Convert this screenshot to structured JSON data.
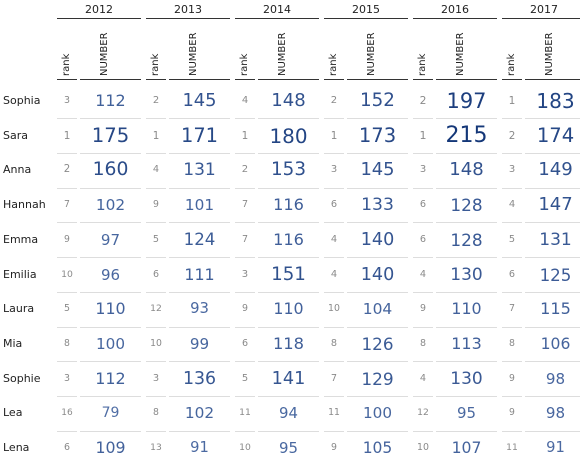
{
  "table": {
    "years": [
      "2012",
      "2013",
      "2014",
      "2015",
      "2016",
      "2017"
    ],
    "subheaders": [
      "rank",
      "NUMBER"
    ],
    "rows": [
      {
        "name": "Sophia",
        "cells": [
          [
            3,
            112
          ],
          [
            2,
            145
          ],
          [
            4,
            148
          ],
          [
            2,
            152
          ],
          [
            2,
            197
          ],
          [
            1,
            183
          ]
        ]
      },
      {
        "name": "Sara",
        "cells": [
          [
            1,
            175
          ],
          [
            1,
            171
          ],
          [
            1,
            180
          ],
          [
            1,
            173
          ],
          [
            1,
            215
          ],
          [
            2,
            174
          ]
        ]
      },
      {
        "name": "Anna",
        "cells": [
          [
            2,
            160
          ],
          [
            4,
            131
          ],
          [
            2,
            153
          ],
          [
            3,
            145
          ],
          [
            3,
            148
          ],
          [
            3,
            149
          ]
        ]
      },
      {
        "name": "Hannah",
        "cells": [
          [
            7,
            102
          ],
          [
            9,
            101
          ],
          [
            7,
            116
          ],
          [
            6,
            133
          ],
          [
            6,
            128
          ],
          [
            4,
            147
          ]
        ]
      },
      {
        "name": "Emma",
        "cells": [
          [
            9,
            97
          ],
          [
            5,
            124
          ],
          [
            7,
            116
          ],
          [
            4,
            140
          ],
          [
            6,
            128
          ],
          [
            5,
            131
          ]
        ]
      },
      {
        "name": "Emilia",
        "cells": [
          [
            10,
            96
          ],
          [
            6,
            111
          ],
          [
            3,
            151
          ],
          [
            4,
            140
          ],
          [
            4,
            130
          ],
          [
            6,
            125
          ]
        ]
      },
      {
        "name": "Laura",
        "cells": [
          [
            5,
            110
          ],
          [
            12,
            93
          ],
          [
            9,
            110
          ],
          [
            10,
            104
          ],
          [
            9,
            110
          ],
          [
            7,
            115
          ]
        ]
      },
      {
        "name": "Mia",
        "cells": [
          [
            8,
            100
          ],
          [
            10,
            99
          ],
          [
            6,
            118
          ],
          [
            8,
            126
          ],
          [
            8,
            113
          ],
          [
            8,
            106
          ]
        ]
      },
      {
        "name": "Sophie",
        "cells": [
          [
            3,
            112
          ],
          [
            3,
            136
          ],
          [
            5,
            141
          ],
          [
            7,
            129
          ],
          [
            4,
            130
          ],
          [
            9,
            98
          ]
        ]
      },
      {
        "name": "Lea",
        "cells": [
          [
            16,
            79
          ],
          [
            8,
            102
          ],
          [
            11,
            94
          ],
          [
            11,
            100
          ],
          [
            12,
            95
          ],
          [
            9,
            98
          ]
        ]
      },
      {
        "name": "Lena",
        "cells": [
          [
            6,
            109
          ],
          [
            13,
            91
          ],
          [
            10,
            95
          ],
          [
            9,
            105
          ],
          [
            10,
            107
          ],
          [
            11,
            91
          ]
        ]
      }
    ]
  }
}
